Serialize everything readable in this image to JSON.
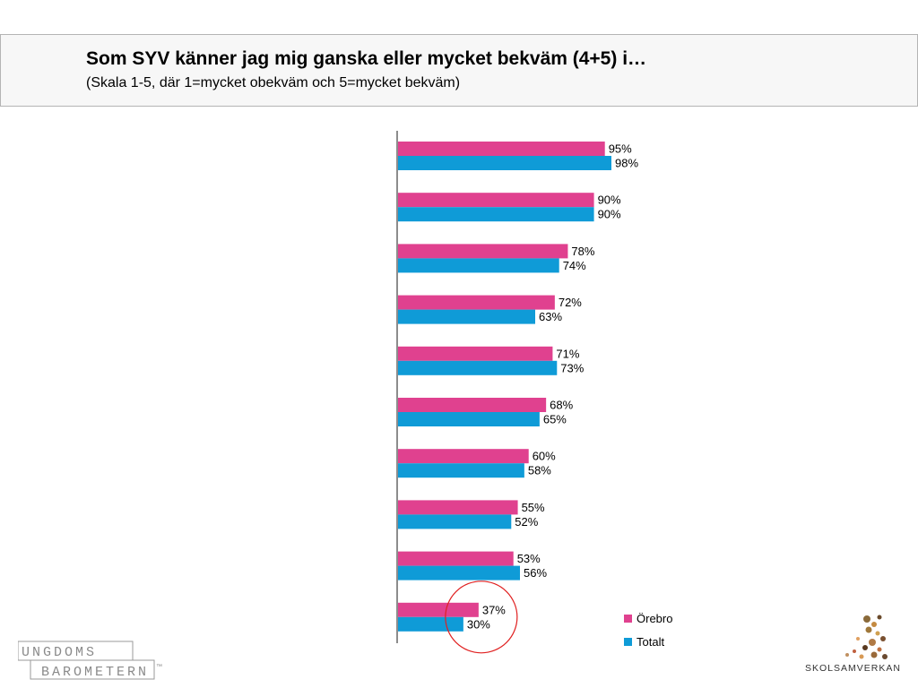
{
  "header": {
    "title": "Som SYV känner jag mig ganska eller mycket bekväm (4+5) i…",
    "subtitle": "(Skala 1-5, där 1=mycket obekväm och 5=mycket bekväm)"
  },
  "chart_data": {
    "type": "bar",
    "orientation": "horizontal",
    "categories": [
      "",
      "",
      "",
      "",
      "",
      "",
      "",
      "",
      "",
      ""
    ],
    "series": [
      {
        "name": "Örebro",
        "color": "#e0418f",
        "values": [
          95,
          90,
          78,
          72,
          71,
          68,
          60,
          55,
          53,
          37
        ]
      },
      {
        "name": "Totalt",
        "color": "#0f9bd7",
        "values": [
          98,
          90,
          74,
          63,
          73,
          65,
          58,
          52,
          56,
          30
        ]
      }
    ],
    "value_suffix": "%",
    "xlim": [
      0,
      100
    ],
    "grid": false,
    "legend_position": "bottom-right",
    "highlighted_category_index": 9,
    "highlight_color": "#e02020"
  },
  "legend": {
    "items": [
      {
        "label": "Örebro",
        "color": "#e0418f"
      },
      {
        "label": "Totalt",
        "color": "#0f9bd7"
      }
    ]
  },
  "logos": {
    "left_line1": "UNGDOMS",
    "left_line2": "BAROMETERN",
    "left_tm": "™",
    "right_text": "SKOLSAMVERKAN"
  }
}
